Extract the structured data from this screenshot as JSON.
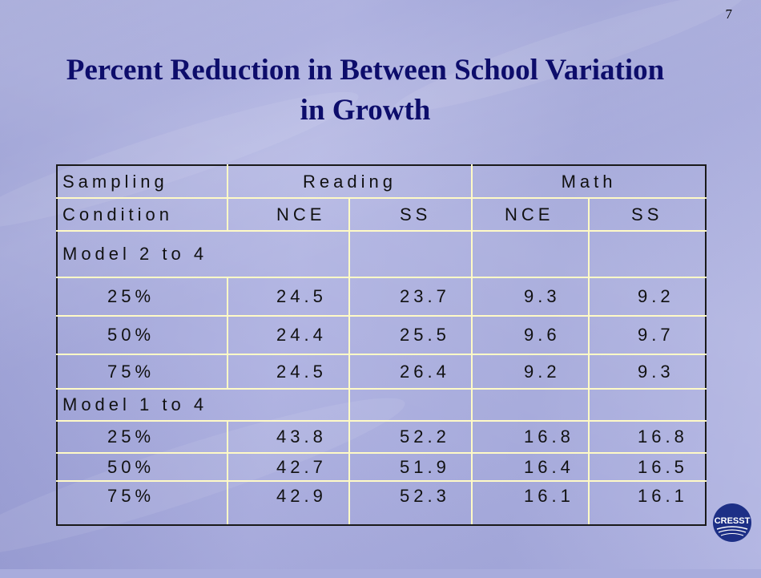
{
  "page_number": "7",
  "title": {
    "line1": "Percent Reduction in Between School Variation",
    "line2": "in Growth"
  },
  "table": {
    "header1": {
      "sampling": "Sampling",
      "reading": "Reading",
      "math": "Math"
    },
    "header2": {
      "condition": "Condition",
      "reading_nce": "NCE",
      "reading_ss": "SS",
      "math_nce": "NCE",
      "math_ss": "SS"
    },
    "groups": [
      {
        "label": "Model 2 to 4",
        "rows": [
          {
            "pct": "25%",
            "values": [
              "24.5",
              "23.7",
              "9.3",
              "9.2"
            ]
          },
          {
            "pct": "50%",
            "values": [
              "24.4",
              "25.5",
              "9.6",
              "9.7"
            ]
          },
          {
            "pct": "75%",
            "values": [
              "24.5",
              "26.4",
              "9.2",
              "9.3"
            ]
          }
        ]
      },
      {
        "label": "Model 1 to 4",
        "rows": [
          {
            "pct": "25%",
            "values": [
              "43.8",
              "52.2",
              "16.8",
              "16.8"
            ]
          },
          {
            "pct": "50%",
            "values": [
              "42.7",
              "51.9",
              "16.4",
              "16.5"
            ]
          },
          {
            "pct": "75%",
            "values": [
              "42.9",
              "52.3",
              "16.1",
              "16.1"
            ]
          }
        ]
      }
    ]
  },
  "logo": {
    "text": "CRESST",
    "color": "#1d2f86"
  },
  "colors": {
    "title": "#0d0d6b",
    "inner_rule": "#fffac6",
    "outer_rule": "#1a1a1a",
    "background": "#a8acdc"
  }
}
